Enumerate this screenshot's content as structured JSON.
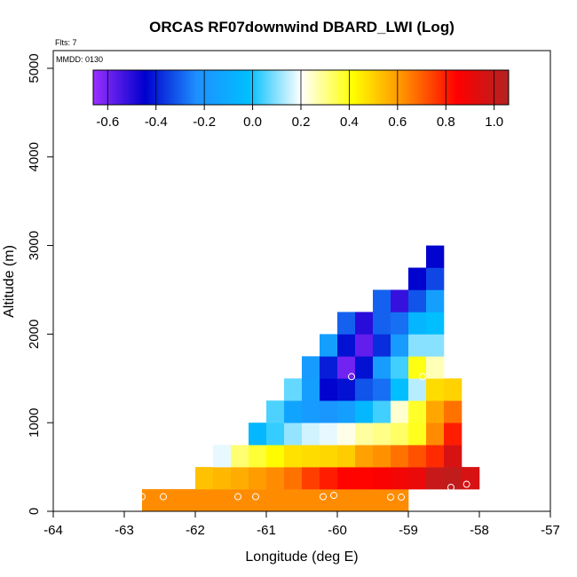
{
  "chart_data": {
    "type": "heatmap",
    "title": "ORCAS RF07downwind DBARD_LWI (Log)",
    "annotations": {
      "flights": "Flts: 7",
      "date": "MMDD: 0130"
    },
    "xlabel": "Longitude (deg E)",
    "ylabel": "Altitude (m)",
    "xlim": [
      -64,
      -57
    ],
    "ylim": [
      0,
      5200
    ],
    "xticks": [
      -64,
      -63,
      -62,
      -61,
      -60,
      -59,
      -58,
      -57
    ],
    "yticks": [
      0,
      1000,
      2000,
      3000,
      4000,
      5000
    ],
    "grid": false,
    "colorbar": {
      "location": "inside-top",
      "range": [
        -0.66,
        1.06
      ],
      "ticks": [
        -0.6,
        -0.4,
        -0.2,
        0.0,
        0.2,
        0.4,
        0.6,
        0.8,
        1.0
      ],
      "tick_labels": [
        "-0.6",
        "-0.4",
        "-0.2",
        "0.0",
        "0.2",
        "0.4",
        "0.6",
        "0.8",
        "1.0"
      ],
      "colors": [
        "#9b30ff",
        "#0000cd",
        "#1e90ff",
        "#00bfff",
        "#ffffff",
        "#ffff00",
        "#ff8c00",
        "#ff0000",
        "#b22222"
      ]
    },
    "cell_size": {
      "lon": 0.25,
      "alt": 250
    },
    "cells": [
      {
        "lon": -62.625,
        "alt": 125,
        "value": 0.63
      },
      {
        "lon": -62.375,
        "alt": 125,
        "value": 0.63
      },
      {
        "lon": -62.125,
        "alt": 125,
        "value": 0.63
      },
      {
        "lon": -61.875,
        "alt": 125,
        "value": 0.63
      },
      {
        "lon": -61.625,
        "alt": 125,
        "value": 0.63
      },
      {
        "lon": -61.375,
        "alt": 125,
        "value": 0.63
      },
      {
        "lon": -61.125,
        "alt": 125,
        "value": 0.63
      },
      {
        "lon": -60.875,
        "alt": 125,
        "value": 0.63
      },
      {
        "lon": -60.625,
        "alt": 125,
        "value": 0.63
      },
      {
        "lon": -60.375,
        "alt": 125,
        "value": 0.63
      },
      {
        "lon": -60.125,
        "alt": 125,
        "value": 0.63
      },
      {
        "lon": -59.875,
        "alt": 125,
        "value": 0.63
      },
      {
        "lon": -59.625,
        "alt": 125,
        "value": 0.63
      },
      {
        "lon": -59.375,
        "alt": 125,
        "value": 0.63
      },
      {
        "lon": -59.125,
        "alt": 125,
        "value": 0.63
      },
      {
        "lon": -61.875,
        "alt": 375,
        "value": 0.53
      },
      {
        "lon": -61.625,
        "alt": 375,
        "value": 0.55
      },
      {
        "lon": -61.375,
        "alt": 375,
        "value": 0.57
      },
      {
        "lon": -61.125,
        "alt": 375,
        "value": 0.6
      },
      {
        "lon": -60.875,
        "alt": 375,
        "value": 0.63
      },
      {
        "lon": -60.625,
        "alt": 375,
        "value": 0.67
      },
      {
        "lon": -60.375,
        "alt": 375,
        "value": 0.75
      },
      {
        "lon": -60.125,
        "alt": 375,
        "value": 0.8
      },
      {
        "lon": -59.875,
        "alt": 375,
        "value": 0.84
      },
      {
        "lon": -59.625,
        "alt": 375,
        "value": 0.84
      },
      {
        "lon": -59.375,
        "alt": 375,
        "value": 0.86
      },
      {
        "lon": -59.125,
        "alt": 375,
        "value": 0.88
      },
      {
        "lon": -58.875,
        "alt": 375,
        "value": 0.9
      },
      {
        "lon": -58.625,
        "alt": 375,
        "value": 1.0
      },
      {
        "lon": -58.375,
        "alt": 375,
        "value": 1.02
      },
      {
        "lon": -58.125,
        "alt": 375,
        "value": 0.96
      },
      {
        "lon": -61.625,
        "alt": 625,
        "value": 0.18
      },
      {
        "lon": -61.375,
        "alt": 625,
        "value": 0.32
      },
      {
        "lon": -61.125,
        "alt": 625,
        "value": 0.37
      },
      {
        "lon": -60.875,
        "alt": 625,
        "value": 0.42
      },
      {
        "lon": -60.625,
        "alt": 625,
        "value": 0.47
      },
      {
        "lon": -60.375,
        "alt": 625,
        "value": 0.48
      },
      {
        "lon": -60.125,
        "alt": 625,
        "value": 0.49
      },
      {
        "lon": -59.875,
        "alt": 625,
        "value": 0.51
      },
      {
        "lon": -59.625,
        "alt": 625,
        "value": 0.59
      },
      {
        "lon": -59.375,
        "alt": 625,
        "value": 0.62
      },
      {
        "lon": -59.125,
        "alt": 625,
        "value": 0.67
      },
      {
        "lon": -58.875,
        "alt": 625,
        "value": 0.72
      },
      {
        "lon": -58.625,
        "alt": 625,
        "value": 0.78
      },
      {
        "lon": -58.375,
        "alt": 625,
        "value": 0.96
      },
      {
        "lon": -61.375,
        "alt": 875,
        "value": 0.2
      },
      {
        "lon": -61.125,
        "alt": 875,
        "value": -0.05
      },
      {
        "lon": -60.875,
        "alt": 875,
        "value": 0.03
      },
      {
        "lon": -60.625,
        "alt": 875,
        "value": 0.11
      },
      {
        "lon": -60.375,
        "alt": 875,
        "value": 0.16
      },
      {
        "lon": -60.125,
        "alt": 875,
        "value": 0.18
      },
      {
        "lon": -59.875,
        "alt": 875,
        "value": 0.22
      },
      {
        "lon": -59.625,
        "alt": 875,
        "value": 0.28
      },
      {
        "lon": -59.375,
        "alt": 875,
        "value": 0.3
      },
      {
        "lon": -59.125,
        "alt": 875,
        "value": 0.33
      },
      {
        "lon": -58.875,
        "alt": 875,
        "value": 0.39
      },
      {
        "lon": -58.625,
        "alt": 875,
        "value": 0.63
      },
      {
        "lon": -58.375,
        "alt": 875,
        "value": 0.8
      },
      {
        "lon": -60.875,
        "alt": 1125,
        "value": 0.05
      },
      {
        "lon": -60.625,
        "alt": 1125,
        "value": -0.14
      },
      {
        "lon": -60.375,
        "alt": 1125,
        "value": -0.18
      },
      {
        "lon": -60.125,
        "alt": 1125,
        "value": -0.2
      },
      {
        "lon": -59.875,
        "alt": 1125,
        "value": -0.16
      },
      {
        "lon": -59.625,
        "alt": 1125,
        "value": -0.05
      },
      {
        "lon": -59.375,
        "alt": 1125,
        "value": 0.04
      },
      {
        "lon": -59.125,
        "alt": 1125,
        "value": 0.24
      },
      {
        "lon": -58.875,
        "alt": 1125,
        "value": 0.38
      },
      {
        "lon": -58.625,
        "alt": 1125,
        "value": 0.58
      },
      {
        "lon": -58.375,
        "alt": 1125,
        "value": 0.67
      },
      {
        "lon": -60.625,
        "alt": 1375,
        "value": 0.07
      },
      {
        "lon": -60.375,
        "alt": 1375,
        "value": -0.16
      },
      {
        "lon": -60.125,
        "alt": 1375,
        "value": -0.44
      },
      {
        "lon": -59.875,
        "alt": 1375,
        "value": -0.42
      },
      {
        "lon": -59.625,
        "alt": 1375,
        "value": -0.32
      },
      {
        "lon": -59.375,
        "alt": 1375,
        "value": -0.28
      },
      {
        "lon": -59.125,
        "alt": 1375,
        "value": -0.02
      },
      {
        "lon": -58.875,
        "alt": 1375,
        "value": 0.14
      },
      {
        "lon": -58.625,
        "alt": 1375,
        "value": 0.48
      },
      {
        "lon": -58.375,
        "alt": 1375,
        "value": 0.5
      },
      {
        "lon": -60.375,
        "alt": 1625,
        "value": -0.18
      },
      {
        "lon": -60.125,
        "alt": 1625,
        "value": -0.4
      },
      {
        "lon": -59.875,
        "alt": 1625,
        "value": -0.6
      },
      {
        "lon": -59.625,
        "alt": 1625,
        "value": -0.42
      },
      {
        "lon": -59.375,
        "alt": 1625,
        "value": -0.17
      },
      {
        "lon": -59.125,
        "alt": 1625,
        "value": 0.04
      },
      {
        "lon": -58.875,
        "alt": 1625,
        "value": 0.4
      },
      {
        "lon": -58.625,
        "alt": 1625,
        "value": 0.26
      },
      {
        "lon": -60.125,
        "alt": 1875,
        "value": -0.16
      },
      {
        "lon": -59.875,
        "alt": 1875,
        "value": -0.42
      },
      {
        "lon": -59.625,
        "alt": 1875,
        "value": -0.58
      },
      {
        "lon": -59.375,
        "alt": 1875,
        "value": -0.38
      },
      {
        "lon": -59.125,
        "alt": 1875,
        "value": -0.18
      },
      {
        "lon": -58.875,
        "alt": 1875,
        "value": 0.1
      },
      {
        "lon": -58.625,
        "alt": 1875,
        "value": 0.1
      },
      {
        "lon": -59.875,
        "alt": 2125,
        "value": -0.3
      },
      {
        "lon": -59.625,
        "alt": 2125,
        "value": -0.5
      },
      {
        "lon": -59.375,
        "alt": 2125,
        "value": -0.3
      },
      {
        "lon": -59.125,
        "alt": 2125,
        "value": -0.28
      },
      {
        "lon": -58.875,
        "alt": 2125,
        "value": -0.06
      },
      {
        "lon": -58.625,
        "alt": 2125,
        "value": -0.02
      },
      {
        "lon": -59.375,
        "alt": 2375,
        "value": -0.3
      },
      {
        "lon": -59.125,
        "alt": 2375,
        "value": -0.52
      },
      {
        "lon": -58.875,
        "alt": 2375,
        "value": -0.32
      },
      {
        "lon": -58.625,
        "alt": 2375,
        "value": -0.16
      },
      {
        "lon": -58.875,
        "alt": 2625,
        "value": -0.44
      },
      {
        "lon": -58.625,
        "alt": 2625,
        "value": -0.34
      },
      {
        "lon": -58.625,
        "alt": 2875,
        "value": -0.44
      }
    ],
    "points": [
      {
        "lon": -62.75,
        "alt": 165
      },
      {
        "lon": -62.45,
        "alt": 165
      },
      {
        "lon": -61.4,
        "alt": 165
      },
      {
        "lon": -61.15,
        "alt": 165
      },
      {
        "lon": -60.2,
        "alt": 165
      },
      {
        "lon": -60.05,
        "alt": 180
      },
      {
        "lon": -59.25,
        "alt": 160
      },
      {
        "lon": -59.1,
        "alt": 160
      },
      {
        "lon": -58.4,
        "alt": 270
      },
      {
        "lon": -58.18,
        "alt": 305
      },
      {
        "lon": -59.8,
        "alt": 1520
      },
      {
        "lon": -58.8,
        "alt": 1520
      },
      {
        "lon": -58.4,
        "alt": 2960
      }
    ]
  }
}
